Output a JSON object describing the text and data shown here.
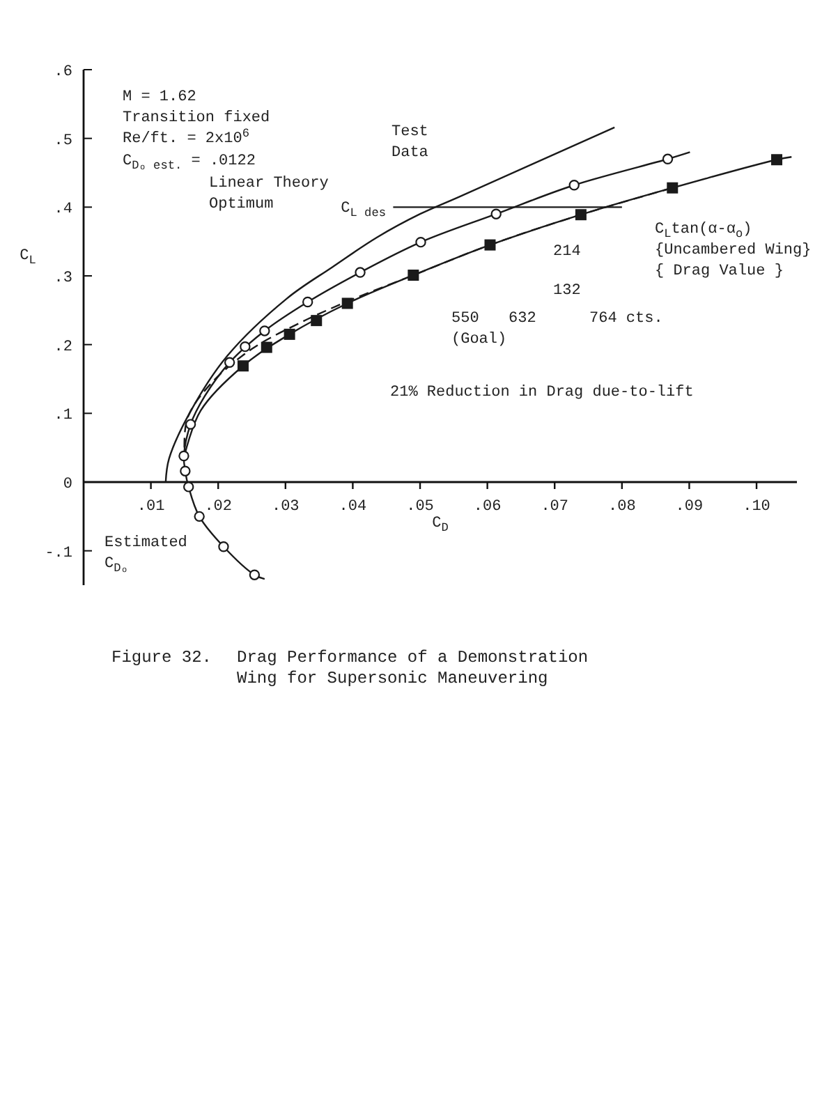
{
  "chart_data": {
    "type": "line",
    "title": "Figure 32.",
    "subtitle": "Drag Performance of a Demonstration\nWing for Supersonic Maneuvering",
    "xlabel": "C$_{D}$",
    "ylabel": "C$_{L}$",
    "xlim": [
      0,
      0.106
    ],
    "ylim": [
      -0.15,
      0.6
    ],
    "xticks": [
      {
        "value": 0.01,
        "label": ".01"
      },
      {
        "value": 0.02,
        "label": ".02"
      },
      {
        "value": 0.03,
        "label": ".03"
      },
      {
        "value": 0.04,
        "label": ".04"
      },
      {
        "value": 0.05,
        "label": ".05"
      },
      {
        "value": 0.06,
        "label": ".06"
      },
      {
        "value": 0.07,
        "label": ".07"
      },
      {
        "value": 0.08,
        "label": ".08"
      },
      {
        "value": 0.09,
        "label": ".09"
      },
      {
        "value": 0.1,
        "label": ".10"
      }
    ],
    "yticks": [
      {
        "value": 0.6,
        "label": ".6"
      },
      {
        "value": 0.5,
        "label": ".5"
      },
      {
        "value": 0.4,
        "label": ".4"
      },
      {
        "value": 0.3,
        "label": ".3"
      },
      {
        "value": 0.2,
        "label": ".2"
      },
      {
        "value": 0.1,
        "label": ".1"
      },
      {
        "value": 0,
        "label": "0"
      },
      {
        "value": -0.1,
        "label": "-.1"
      }
    ],
    "series": [
      {
        "type": "line",
        "color": "#1a1a1a",
        "line_style": "solid",
        "x": [
          0.1052,
          0.103,
          0.0875,
          0.0739,
          0.0604,
          0.049,
          0.0392,
          0.0306,
          0.0237,
          0.0174,
          0.015
        ],
        "values": [
          0.473,
          0.469,
          0.428,
          0.389,
          0.345,
          0.301,
          0.26,
          0.215,
          0.169,
          0.104,
          0.039
        ]
      },
      {
        "type": "line",
        "color": "#1a1a1a",
        "line_style": "solid",
        "x": [
          0.0901,
          0.0868,
          0.0729,
          0.0613,
          0.0501,
          0.0411,
          0.0333,
          0.0269,
          0.0217,
          0.018,
          0.0159,
          0.0149,
          0.0151,
          0.0156,
          0.0172,
          0.0208,
          0.0254,
          0.0269
        ],
        "values": [
          0.48,
          0.47,
          0.432,
          0.39,
          0.349,
          0.305,
          0.262,
          0.22,
          0.174,
          0.125,
          0.084,
          0.038,
          0.016,
          -0.007,
          -0.05,
          -0.094,
          -0.135,
          -0.141
        ]
      },
      {
        "type": "line",
        "color": "#1a1a1a",
        "line_style": "solid",
        "x": [
          0.0789,
          0.0558,
          0.05,
          0.0436,
          0.037,
          0.0302,
          0.0213,
          0.0159,
          0.0127,
          0.0122
        ],
        "values": [
          0.516,
          0.415,
          0.39,
          0.356,
          0.313,
          0.267,
          0.183,
          0.103,
          0.034,
          0.0
        ]
      },
      {
        "type": "line",
        "color": "#1a1a1a",
        "line_style": "dashed",
        "x": [
          0.0875,
          0.0739,
          0.0604,
          0.049,
          0.039,
          0.0316,
          0.0249,
          0.0188,
          0.0154,
          0.015
        ],
        "values": [
          0.428,
          0.389,
          0.345,
          0.301,
          0.262,
          0.229,
          0.193,
          0.142,
          0.092,
          0.039
        ]
      },
      {
        "type": "line",
        "color": "#1a1a1a",
        "line_style": "solid",
        "x": [
          0.046,
          0.08
        ],
        "values": [
          0.4,
          0.4
        ]
      },
      {
        "type": "scatter",
        "marker": "square",
        "color": "#1a1a1a",
        "x": [
          0.103,
          0.0875,
          0.0739,
          0.0604,
          0.049,
          0.0392,
          0.0346,
          0.0306,
          0.0272,
          0.0237
        ],
        "values": [
          0.469,
          0.428,
          0.389,
          0.345,
          0.301,
          0.26,
          0.235,
          0.215,
          0.196,
          0.169
        ]
      },
      {
        "type": "scatter",
        "marker": "circle",
        "color": "#1a1a1a",
        "x": [
          0.0868,
          0.0729,
          0.0613,
          0.0501,
          0.0411,
          0.0333,
          0.0269,
          0.024,
          0.0217,
          0.0159,
          0.0149,
          0.0151,
          0.0156,
          0.0172,
          0.0208,
          0.0254
        ],
        "values": [
          0.47,
          0.432,
          0.39,
          0.349,
          0.305,
          0.262,
          0.22,
          0.197,
          0.174,
          0.084,
          0.038,
          0.016,
          -0.007,
          -0.05,
          -0.094,
          -0.135
        ]
      }
    ],
    "annotations": [
      "C$_{L des}$",
      "21% Reduction in Drag due-to-lift",
      "764 cts.",
      "632",
      "550\n(Goal)",
      "214",
      "132",
      "C$_{L}$tan(α-α$_{o}$)\n{Uncambered Wing}\n{ Drag Value }",
      "Test\nData",
      "Linear Theory\nOptimum",
      "Estimated\nC$_{Dₒ}$",
      "M = 1.62\nTransition fixed\nRe/ft. = 2x10$^{6}$",
      "C$_{Dₒ est.}$ = .0122"
    ]
  }
}
